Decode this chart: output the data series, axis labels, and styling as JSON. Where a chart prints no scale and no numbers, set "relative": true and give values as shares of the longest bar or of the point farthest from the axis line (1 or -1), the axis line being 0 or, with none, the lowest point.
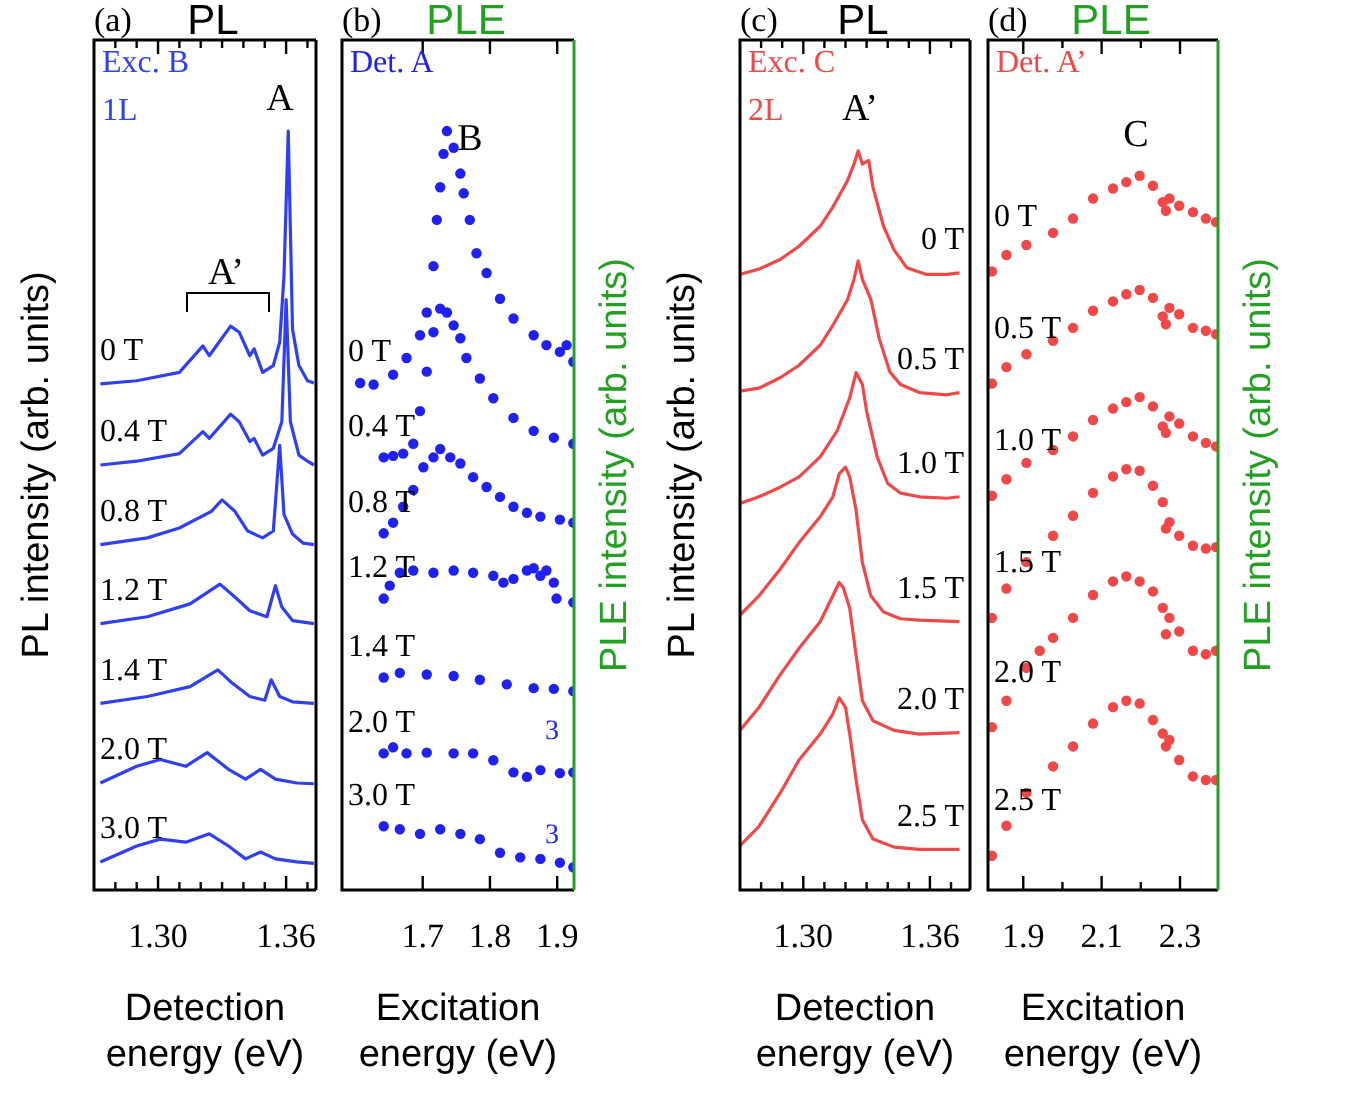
{
  "chart_data": [
    {
      "type": "line",
      "title": "PL",
      "xlabel": "Detection energy (eV)",
      "ylabel": "PL intensity (arb. units)",
      "relative": true,
      "xlim": [
        1.27,
        1.374
      ],
      "xticks": [
        {
          "value": 1.28,
          "label": null
        },
        {
          "value": 1.29,
          "label": null
        },
        {
          "value": 1.3,
          "label": "1.30"
        },
        {
          "value": 1.31,
          "label": null
        },
        {
          "value": 1.32,
          "label": null
        },
        {
          "value": 1.33,
          "label": null
        },
        {
          "value": 1.34,
          "label": null
        },
        {
          "value": 1.35,
          "label": null
        },
        {
          "value": 1.36,
          "label": "1.36"
        },
        {
          "value": 1.37,
          "label": null
        }
      ],
      "annotations": [
        "(a)",
        "Exc. B",
        "1L",
        "A",
        "A’"
      ],
      "series": [
        {
          "name": "0 T",
          "color": "#3040f0",
          "x": [
            1.273,
            1.29,
            1.31,
            1.321,
            1.324,
            1.334,
            1.338,
            1.343,
            1.345,
            1.349,
            1.354,
            1.357,
            1.359,
            1.361,
            1.363,
            1.366,
            1.37,
            1.373
          ],
          "values": [
            0.667,
            0.671,
            0.682,
            0.717,
            0.704,
            0.743,
            0.735,
            0.704,
            0.713,
            0.682,
            0.691,
            0.722,
            0.809,
            1.0,
            0.739,
            0.691,
            0.671,
            0.668
          ]
        },
        {
          "name": "0.4 T",
          "color": "#3040f0",
          "x": [
            1.273,
            1.29,
            1.31,
            1.321,
            1.324,
            1.334,
            1.338,
            1.343,
            1.345,
            1.349,
            1.354,
            1.358,
            1.36,
            1.362,
            1.366,
            1.37,
            1.373
          ],
          "values": [
            0.56,
            0.565,
            0.575,
            0.604,
            0.595,
            0.627,
            0.617,
            0.591,
            0.595,
            0.573,
            0.582,
            0.617,
            0.778,
            0.617,
            0.573,
            0.565,
            0.56
          ]
        },
        {
          "name": "0.8 T",
          "color": "#3040f0",
          "x": [
            1.273,
            1.295,
            1.31,
            1.325,
            1.33,
            1.336,
            1.342,
            1.349,
            1.354,
            1.357,
            1.359,
            1.363,
            1.368,
            1.373
          ],
          "values": [
            0.455,
            0.464,
            0.477,
            0.499,
            0.514,
            0.499,
            0.473,
            0.464,
            0.473,
            0.586,
            0.495,
            0.469,
            0.457,
            0.455
          ]
        },
        {
          "name": "1.2 T",
          "color": "#3040f0",
          "x": [
            1.273,
            1.295,
            1.315,
            1.329,
            1.336,
            1.343,
            1.351,
            1.355,
            1.358,
            1.363,
            1.373
          ],
          "values": [
            0.351,
            0.36,
            0.377,
            0.403,
            0.386,
            0.368,
            0.36,
            0.401,
            0.373,
            0.355,
            0.351
          ]
        },
        {
          "name": "1.4 T",
          "color": "#3040f0",
          "x": [
            1.273,
            1.295,
            1.315,
            1.328,
            1.335,
            1.343,
            1.35,
            1.353,
            1.357,
            1.363,
            1.373
          ],
          "values": [
            0.246,
            0.255,
            0.268,
            0.29,
            0.272,
            0.255,
            0.25,
            0.277,
            0.255,
            0.248,
            0.246
          ]
        },
        {
          "name": "2.0 T",
          "color": "#3040f0",
          "x": [
            1.273,
            1.29,
            1.301,
            1.313,
            1.323,
            1.333,
            1.341,
            1.348,
            1.355,
            1.365,
            1.373
          ],
          "values": [
            0.141,
            0.163,
            0.172,
            0.163,
            0.181,
            0.159,
            0.146,
            0.159,
            0.146,
            0.141,
            0.14
          ]
        },
        {
          "name": "3.0 T",
          "color": "#3040f0",
          "x": [
            1.273,
            1.29,
            1.301,
            1.313,
            1.324,
            1.333,
            1.341,
            1.348,
            1.355,
            1.365,
            1.373
          ],
          "values": [
            0.037,
            0.058,
            0.067,
            0.063,
            0.074,
            0.058,
            0.041,
            0.05,
            0.041,
            0.037,
            0.035
          ]
        }
      ]
    },
    {
      "type": "scatter",
      "title": "PLE",
      "xlabel": "Excitation energy (eV)",
      "y2label": "PLE intensity (arb. units)",
      "relative": true,
      "marker": "circle",
      "xlim": [
        1.58,
        1.925
      ],
      "xticks": [
        1.7,
        1.8,
        1.9
      ],
      "annotations": [
        "(b)",
        "Det. A",
        "B",
        "3",
        "3"
      ],
      "series": [
        {
          "name": "0 T",
          "color": "#2020f0",
          "x": [
            1.607,
            1.627,
            1.656,
            1.676,
            1.696,
            1.706,
            1.716,
            1.721,
            1.726,
            1.731,
            1.736,
            1.746,
            1.756,
            1.761,
            1.77,
            1.78,
            1.795,
            1.815,
            1.835,
            1.865,
            1.884,
            1.904,
            1.914,
            1.924
          ],
          "values": [
            0.668,
            0.666,
            0.679,
            0.701,
            0.731,
            0.761,
            0.822,
            0.883,
            0.926,
            0.97,
            1.0,
            0.978,
            0.944,
            0.918,
            0.883,
            0.839,
            0.813,
            0.779,
            0.753,
            0.731,
            0.718,
            0.709,
            0.718,
            0.696
          ]
        },
        {
          "name": "0.4 T",
          "color": "#2020f0",
          "x": [
            1.642,
            1.656,
            1.671,
            1.686,
            1.696,
            1.706,
            1.716,
            1.726,
            1.736,
            1.746,
            1.756,
            1.765,
            1.785,
            1.805,
            1.835,
            1.865,
            1.895,
            1.924
          ],
          "values": [
            0.57,
            0.572,
            0.575,
            0.588,
            0.631,
            0.683,
            0.735,
            0.766,
            0.761,
            0.744,
            0.727,
            0.701,
            0.674,
            0.648,
            0.622,
            0.605,
            0.596,
            0.588
          ]
        },
        {
          "name": "0.8 T",
          "color": "#2020f0",
          "x": [
            1.642,
            1.656,
            1.671,
            1.686,
            1.701,
            1.716,
            1.726,
            1.741,
            1.756,
            1.775,
            1.795,
            1.815,
            1.835,
            1.855,
            1.875,
            1.904,
            1.924
          ],
          "values": [
            0.47,
            0.484,
            0.505,
            0.527,
            0.557,
            0.57,
            0.581,
            0.57,
            0.562,
            0.544,
            0.531,
            0.518,
            0.505,
            0.497,
            0.492,
            0.488,
            0.484
          ]
        },
        {
          "name": "1.2 T",
          "color": "#2020f0",
          "x": [
            1.642,
            1.651,
            1.666,
            1.686,
            1.716,
            1.746,
            1.775,
            1.805,
            1.82,
            1.835,
            1.855,
            1.865,
            1.875,
            1.884,
            1.895,
            1.899,
            1.924
          ],
          "values": [
            0.384,
            0.401,
            0.418,
            0.421,
            0.418,
            0.421,
            0.418,
            0.414,
            0.405,
            0.41,
            0.421,
            0.424,
            0.414,
            0.421,
            0.405,
            0.384,
            0.379
          ]
        },
        {
          "name": "1.4 T",
          "color": "#2020f0",
          "x": [
            1.642,
            1.666,
            1.706,
            1.746,
            1.785,
            1.825,
            1.865,
            1.895,
            1.924
          ],
          "values": [
            0.28,
            0.286,
            0.284,
            0.282,
            0.277,
            0.271,
            0.266,
            0.265,
            0.262
          ]
        },
        {
          "name": "2.0 T",
          "color": "#2020f0",
          "x": [
            1.642,
            1.656,
            1.676,
            1.706,
            1.746,
            1.775,
            1.805,
            1.835,
            1.855,
            1.875,
            1.904,
            1.924
          ],
          "values": [
            0.18,
            0.188,
            0.18,
            0.181,
            0.18,
            0.18,
            0.171,
            0.155,
            0.149,
            0.158,
            0.154,
            0.155
          ]
        },
        {
          "name": "3.0 T",
          "color": "#2020f0",
          "x": [
            1.642,
            1.666,
            1.696,
            1.726,
            1.756,
            1.785,
            1.815,
            1.845,
            1.875,
            1.904,
            1.924
          ],
          "values": [
            0.084,
            0.08,
            0.074,
            0.08,
            0.074,
            0.067,
            0.049,
            0.043,
            0.041,
            0.036,
            0.03
          ]
        }
      ]
    },
    {
      "type": "line",
      "title": "PL",
      "xlabel": "Detection energy (eV)",
      "ylabel": "PL intensity (arb. units)",
      "relative": true,
      "xlim": [
        1.27,
        1.379
      ],
      "xticks": [
        {
          "value": 1.28,
          "label": null
        },
        {
          "value": 1.29,
          "label": null
        },
        {
          "value": 1.3,
          "label": "1.30"
        },
        {
          "value": 1.31,
          "label": null
        },
        {
          "value": 1.32,
          "label": null
        },
        {
          "value": 1.33,
          "label": null
        },
        {
          "value": 1.34,
          "label": null
        },
        {
          "value": 1.35,
          "label": null
        },
        {
          "value": 1.36,
          "label": "1.36"
        },
        {
          "value": 1.37,
          "label": null
        }
      ],
      "annotations": [
        "(c)",
        "Exc. C",
        "2L",
        "A’"
      ],
      "series": [
        {
          "name": "0 T",
          "color": "#f04848",
          "x": [
            1.27,
            1.279,
            1.289,
            1.298,
            1.308,
            1.314,
            1.321,
            1.324,
            1.326,
            1.328,
            1.331,
            1.333,
            1.338,
            1.343,
            1.349,
            1.358,
            1.368,
            1.374
          ],
          "values": [
            0.833,
            0.84,
            0.853,
            0.871,
            0.898,
            0.924,
            0.96,
            0.982,
            1.0,
            0.982,
            0.987,
            0.951,
            0.898,
            0.866,
            0.842,
            0.833,
            0.833,
            0.835
          ]
        },
        {
          "name": "0.5 T",
          "color": "#f04848",
          "x": [
            1.27,
            1.279,
            1.289,
            1.298,
            1.308,
            1.314,
            1.321,
            1.324,
            1.326,
            1.328,
            1.332,
            1.336,
            1.341,
            1.346,
            1.355,
            1.368,
            1.374
          ],
          "values": [
            0.675,
            0.679,
            0.693,
            0.71,
            0.737,
            0.764,
            0.799,
            0.826,
            0.851,
            0.826,
            0.799,
            0.746,
            0.701,
            0.684,
            0.673,
            0.67,
            0.673
          ]
        },
        {
          "name": "1.0 T",
          "color": "#f04848",
          "x": [
            1.27,
            1.279,
            1.289,
            1.298,
            1.308,
            1.316,
            1.322,
            1.325,
            1.328,
            1.33,
            1.335,
            1.34,
            1.346,
            1.355,
            1.368,
            1.374
          ],
          "values": [
            0.523,
            0.532,
            0.545,
            0.559,
            0.586,
            0.621,
            0.666,
            0.7,
            0.684,
            0.648,
            0.586,
            0.55,
            0.537,
            0.532,
            0.53,
            0.532
          ]
        },
        {
          "name": "1.5 T",
          "color": "#f04848",
          "x": [
            1.27,
            1.279,
            1.289,
            1.298,
            1.308,
            1.314,
            1.317,
            1.32,
            1.322,
            1.325,
            1.328,
            1.332,
            1.338,
            1.346,
            1.355,
            1.374
          ],
          "values": [
            0.372,
            0.398,
            0.434,
            0.47,
            0.505,
            0.532,
            0.563,
            0.572,
            0.559,
            0.514,
            0.443,
            0.398,
            0.376,
            0.367,
            0.365,
            0.363
          ]
        },
        {
          "name": "2.0 T",
          "color": "#f04848",
          "x": [
            1.27,
            1.279,
            1.289,
            1.298,
            1.308,
            1.314,
            1.317,
            1.319,
            1.322,
            1.325,
            1.328,
            1.333,
            1.343,
            1.355,
            1.374
          ],
          "values": [
            0.216,
            0.247,
            0.291,
            0.327,
            0.363,
            0.398,
            0.416,
            0.409,
            0.381,
            0.318,
            0.256,
            0.229,
            0.216,
            0.211,
            0.213
          ]
        },
        {
          "name": "2.5 T",
          "color": "#f04848",
          "x": [
            1.27,
            1.279,
            1.289,
            1.298,
            1.308,
            1.314,
            1.317,
            1.32,
            1.322,
            1.325,
            1.328,
            1.333,
            1.343,
            1.355,
            1.374
          ],
          "values": [
            0.06,
            0.086,
            0.131,
            0.176,
            0.211,
            0.238,
            0.26,
            0.247,
            0.211,
            0.149,
            0.095,
            0.069,
            0.058,
            0.055,
            0.055
          ]
        }
      ]
    },
    {
      "type": "scatter",
      "title": "PLE",
      "xlabel": "Excitation energy (eV)",
      "y2label": "PLE intensity (arb. units)",
      "relative": true,
      "marker": "circle",
      "xlim": [
        1.81,
        2.397
      ],
      "xticks": [
        1.9,
        {
          "value": 2.0,
          "label": null
        },
        2.1,
        {
          "value": 2.2,
          "label": null
        },
        2.3
      ],
      "annotations": [
        "(d)",
        "Det. A’",
        "C"
      ],
      "series": [
        {
          "name": "0 T",
          "color": "#f04848",
          "x": [
            1.82,
            1.857,
            1.908,
            1.976,
            2.027,
            2.078,
            2.129,
            2.163,
            2.197,
            2.231,
            2.256,
            2.264,
            2.273,
            2.298,
            2.333,
            2.366,
            2.392
          ],
          "values": [
            0.866,
            0.889,
            0.903,
            0.92,
            0.94,
            0.968,
            0.982,
            0.991,
            1.0,
            0.986,
            0.963,
            0.951,
            0.968,
            0.958,
            0.949,
            0.94,
            0.935
          ]
        },
        {
          "name": "0.5 T",
          "color": "#f04848",
          "x": [
            1.82,
            1.857,
            1.908,
            1.976,
            2.027,
            2.078,
            2.129,
            2.163,
            2.197,
            2.231,
            2.256,
            2.264,
            2.273,
            2.298,
            2.333,
            2.366,
            2.392
          ],
          "values": [
            0.709,
            0.732,
            0.75,
            0.769,
            0.787,
            0.811,
            0.824,
            0.834,
            0.84,
            0.829,
            0.803,
            0.792,
            0.815,
            0.806,
            0.787,
            0.783,
            0.778
          ]
        },
        {
          "name": "1.0 T",
          "color": "#f04848",
          "x": [
            1.82,
            1.857,
            1.908,
            1.976,
            2.027,
            2.078,
            2.129,
            2.163,
            2.197,
            2.231,
            2.256,
            2.264,
            2.273,
            2.298,
            2.333,
            2.366,
            2.392
          ],
          "values": [
            0.552,
            0.575,
            0.598,
            0.616,
            0.635,
            0.658,
            0.674,
            0.683,
            0.69,
            0.677,
            0.649,
            0.64,
            0.663,
            0.653,
            0.635,
            0.626,
            0.621
          ]
        },
        {
          "name": "1.5 T",
          "color": "#f04848",
          "x": [
            1.82,
            1.857,
            1.908,
            1.976,
            2.027,
            2.078,
            2.129,
            2.163,
            2.197,
            2.231,
            2.256,
            2.264,
            2.273,
            2.298,
            2.333,
            2.366,
            2.392
          ],
          "values": [
            0.381,
            0.422,
            0.459,
            0.496,
            0.524,
            0.556,
            0.579,
            0.589,
            0.587,
            0.566,
            0.543,
            0.506,
            0.515,
            0.496,
            0.482,
            0.478,
            0.48
          ]
        },
        {
          "name": "2.0 T",
          "color": "#f04848",
          "x": [
            1.82,
            1.857,
            1.908,
            1.942,
            1.976,
            2.027,
            2.078,
            2.129,
            2.163,
            2.197,
            2.231,
            2.256,
            2.264,
            2.273,
            2.298,
            2.333,
            2.366,
            2.392
          ],
          "values": [
            0.228,
            0.265,
            0.311,
            0.335,
            0.353,
            0.381,
            0.413,
            0.432,
            0.439,
            0.432,
            0.418,
            0.395,
            0.358,
            0.381,
            0.362,
            0.335,
            0.33,
            0.335
          ]
        },
        {
          "name": "2.5 T",
          "color": "#f04848",
          "x": [
            1.82,
            1.857,
            1.908,
            1.976,
            2.027,
            2.078,
            2.129,
            2.163,
            2.197,
            2.231,
            2.256,
            2.264,
            2.273,
            2.298,
            2.333,
            2.366,
            2.392
          ],
          "values": [
            0.048,
            0.09,
            0.136,
            0.173,
            0.201,
            0.233,
            0.256,
            0.265,
            0.261,
            0.238,
            0.219,
            0.201,
            0.21,
            0.182,
            0.159,
            0.154,
            0.154
          ]
        }
      ]
    }
  ]
}
